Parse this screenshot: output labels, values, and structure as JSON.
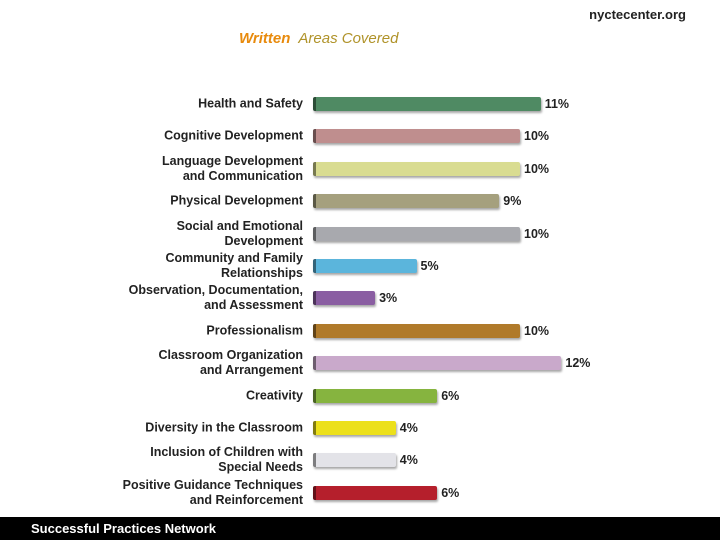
{
  "source": "nyctecenter.org",
  "footer": "Successful Practices Network",
  "chart_data": {
    "type": "bar",
    "orientation": "horizontal",
    "title": {
      "highlight": "Written",
      "text": "Areas Covered"
    },
    "categories": [
      "Health and Safety",
      "Cognitive Development",
      "Language Development\nand Communication",
      "Physical Development",
      "Social and Emotional\nDevelopment",
      "Community and Family\nRelationships",
      "Observation, Documentation,\nand Assessment",
      "Professionalism",
      "Classroom Organization\nand Arrangement",
      "Creativity",
      "Diversity in the Classroom",
      "Inclusion of Children with\nSpecial Needs",
      "Positive Guidance Techniques\nand Reinforcement"
    ],
    "values": [
      11,
      10,
      10,
      9,
      10,
      5,
      3,
      10,
      12,
      6,
      4,
      4,
      6
    ],
    "value_labels": [
      "11%",
      "10%",
      "10%",
      "9%",
      "10%",
      "5%",
      "3%",
      "10%",
      "12%",
      "6%",
      "4%",
      "4%",
      "6%"
    ],
    "colors": [
      "#4f8a63",
      "#bf8e8e",
      "#d9dc91",
      "#a5a07e",
      "#a8a9ae",
      "#5bb5dc",
      "#8a5ea2",
      "#b07a2a",
      "#c9a9cb",
      "#86b43f",
      "#ece01b",
      "#e3e3e8",
      "#b51f2c"
    ]
  }
}
